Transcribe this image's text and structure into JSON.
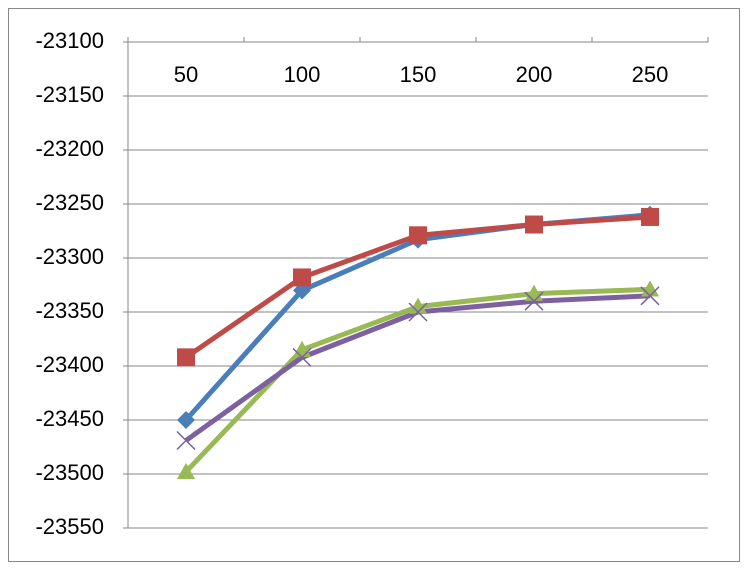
{
  "chart_data": {
    "type": "line",
    "categories": [
      "50",
      "100",
      "150",
      "200",
      "250"
    ],
    "series": [
      {
        "color": "#4a7ebb",
        "marker": "diamond",
        "values": [
          -23450,
          -23330,
          -23283,
          -23269,
          -23260
        ]
      },
      {
        "color": "#be4b48",
        "marker": "square",
        "values": [
          -23392,
          -23318,
          -23279,
          -23269,
          -23262
        ]
      },
      {
        "color": "#98b954",
        "marker": "triangle",
        "values": [
          -23498,
          -23385,
          -23345,
          -23333,
          -23329
        ]
      },
      {
        "color": "#7d60a0",
        "marker": "x",
        "values": [
          -23469,
          -23392,
          -23350,
          -23340,
          -23335
        ]
      }
    ],
    "ylim": [
      -23550,
      -23100
    ],
    "yticks": [
      -23100,
      -23150,
      -23200,
      -23250,
      -23300,
      -23350,
      -23400,
      -23450,
      -23500,
      -23550
    ],
    "grid": true,
    "x_axis_position": "top"
  }
}
